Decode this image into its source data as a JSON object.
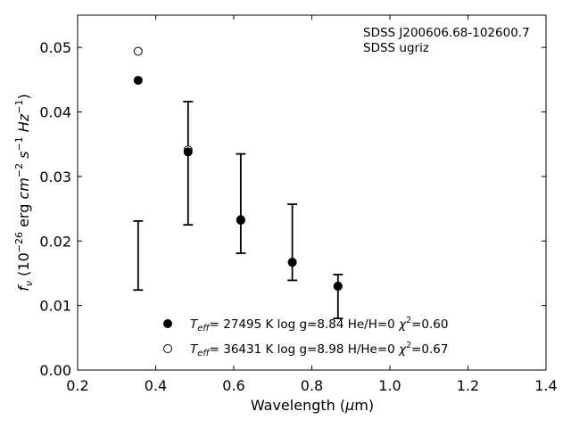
{
  "chart_data": {
    "type": "scatter",
    "annotation_lines": [
      "SDSS J200606.68-102600.7",
      "SDSS ugriz"
    ],
    "xlabel_parts": [
      "Wavelength (",
      "μ",
      "m)"
    ],
    "ylabel_parts": {
      "f": "f",
      "nu": "ν",
      "mid": " (10",
      "exp26": "−26",
      "erg": " erg ",
      "cm": "cm",
      "cm_exp": "−2",
      "s": " s",
      "s_exp": "−1",
      "hz": " Hz",
      "hz_exp": "−1",
      "close": ")"
    },
    "xlim": [
      0.2,
      1.4
    ],
    "ylim": [
      0.0,
      0.055
    ],
    "xticks": [
      "0.2",
      "0.4",
      "0.6",
      "0.8",
      "1.0",
      "1.2",
      "1.4"
    ],
    "xtick_values": [
      0.2,
      0.4,
      0.6,
      0.8,
      1.0,
      1.2,
      1.4
    ],
    "yticks": [
      "0.00",
      "0.01",
      "0.02",
      "0.03",
      "0.04",
      "0.05"
    ],
    "ytick_values": [
      0.0,
      0.01,
      0.02,
      0.03,
      0.04,
      0.05
    ],
    "grid": false,
    "legend_position": "lower-center",
    "observed": {
      "x": [
        0.355,
        0.483,
        0.618,
        0.75,
        0.867
      ],
      "y_low": [
        0.0124,
        0.0225,
        0.0181,
        0.0139,
        0.008
      ],
      "y_high": [
        0.0231,
        0.0416,
        0.0335,
        0.0257,
        0.0148
      ]
    },
    "series": [
      {
        "name_parts": {
          "T": "T",
          "sub": "eff",
          "rest": "= 27495 K  log g=8.84  He/H=0  ",
          "chi": "χ",
          "chi_exp": "2",
          "chi_val": "=0.60"
        },
        "marker": "filled",
        "x": [
          0.355,
          0.483,
          0.618,
          0.75,
          0.867
        ],
        "y": [
          0.0449,
          0.0338,
          0.0233,
          0.0167,
          0.013
        ]
      },
      {
        "name_parts": {
          "T": "T",
          "sub": "eff",
          "rest": "= 36431 K  log g=8.98  H/He=0  ",
          "chi": "χ",
          "chi_exp": "2",
          "chi_val": "=0.67"
        },
        "marker": "open",
        "x": [
          0.355,
          0.483,
          0.618,
          0.75,
          0.867
        ],
        "y": [
          0.0494,
          0.0341,
          0.0232,
          0.0167,
          0.013
        ]
      }
    ],
    "colors": {
      "axis": "#000000",
      "marker": "#000000",
      "background": "#ffffff"
    }
  }
}
